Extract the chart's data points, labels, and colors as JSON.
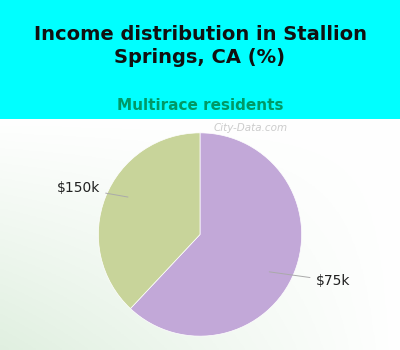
{
  "title": "Income distribution in Stallion\nSprings, CA (%)",
  "subtitle": "Multirace residents",
  "title_fontsize": 14,
  "subtitle_fontsize": 11,
  "title_color": "#111111",
  "subtitle_color": "#009966",
  "background_color": "#00ffff",
  "chart_bg_color_center": "#f5f5f0",
  "chart_bg_color_corner": "#c8eac8",
  "slices": [
    {
      "label": "$75k",
      "value": 62,
      "color": "#c2a8d8"
    },
    {
      "label": "$150k",
      "value": 38,
      "color": "#c8d49a"
    }
  ],
  "label_fontsize": 10,
  "label_color": "#222222",
  "watermark": "City-Data.com",
  "startangle": 90,
  "counterclock": false
}
